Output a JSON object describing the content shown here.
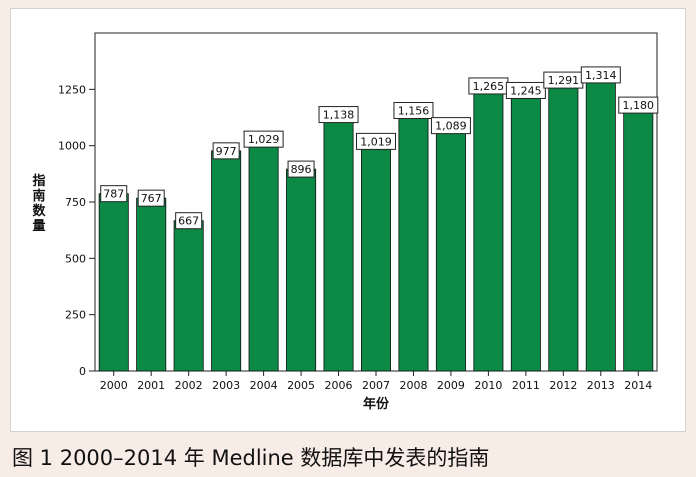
{
  "chart_data": {
    "type": "bar",
    "categories": [
      "2000",
      "2001",
      "2002",
      "2003",
      "2004",
      "2005",
      "2006",
      "2007",
      "2008",
      "2009",
      "2010",
      "2011",
      "2012",
      "2013",
      "2014"
    ],
    "values": [
      787,
      767,
      667,
      977,
      1029,
      896,
      1138,
      1019,
      1156,
      1089,
      1265,
      1245,
      1291,
      1314,
      1180
    ],
    "data_labels": [
      "787",
      "767",
      "667",
      "977",
      "1,029",
      "896",
      "1,138",
      "1,019",
      "1,156",
      "1,089",
      "1,265",
      "1,245",
      "1,291",
      "1,314",
      "1,180"
    ],
    "xlabel": "年份",
    "ylabel": "指南数量",
    "ylim": [
      0,
      1500
    ],
    "yticks": [
      0,
      250,
      500,
      750,
      1000,
      1250
    ],
    "ytick_labels": [
      "0",
      "250",
      "500",
      "750",
      "1000",
      "1250"
    ],
    "bar_color": "#0c8a45",
    "plot_background": "#ffffff",
    "grid": false,
    "legend": "none"
  },
  "caption": "图 1  2000–2014 年 Medline 数据库中发表的指南"
}
